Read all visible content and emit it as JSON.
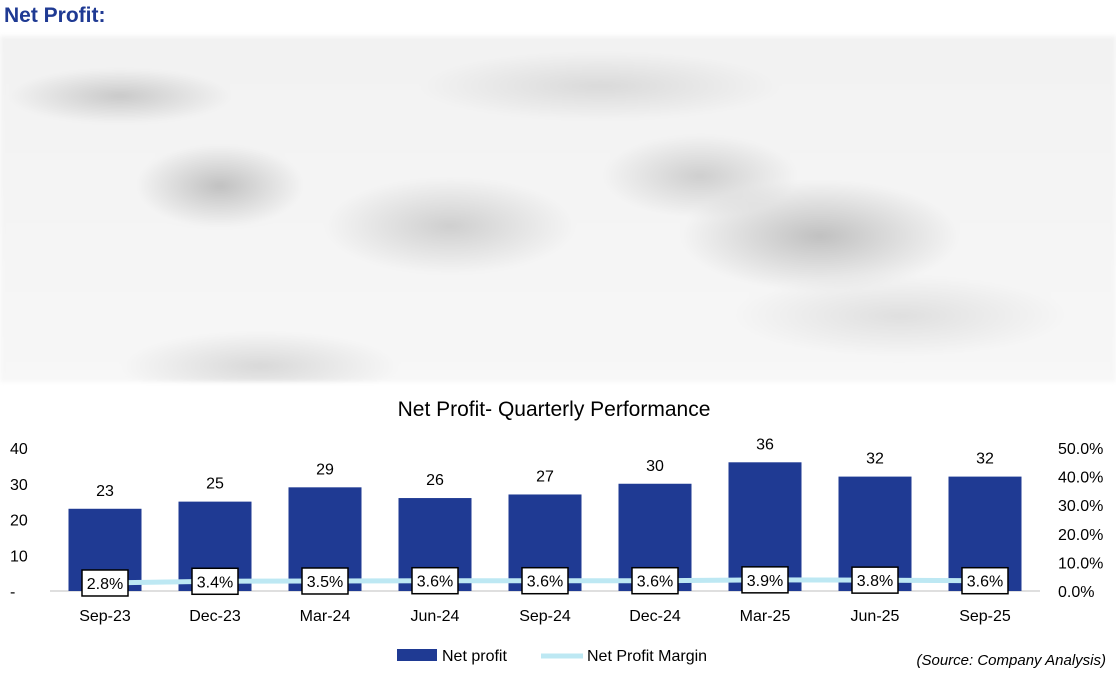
{
  "heading": "Net Profit:",
  "source": "(Source: Company Analysis)",
  "colors": {
    "bar": "#1f3a93",
    "line": "#bde8f3",
    "heading": "#1f3a93"
  },
  "chart_data": {
    "type": "bar",
    "title": "Net Profit- Quarterly Performance",
    "categories": [
      "Sep-23",
      "Dec-23",
      "Mar-24",
      "Jun-24",
      "Sep-24",
      "Dec-24",
      "Mar-25",
      "Jun-25",
      "Sep-25"
    ],
    "series": [
      {
        "name": "Net profit",
        "type": "bar",
        "axis": "left",
        "values": [
          23,
          25,
          29,
          26,
          27,
          30,
          36,
          32,
          32
        ],
        "labels": [
          "23",
          "25",
          "29",
          "26",
          "27",
          "30",
          "36",
          "32",
          "32"
        ]
      },
      {
        "name": "Net Profit Margin",
        "type": "line",
        "axis": "right",
        "values": [
          2.8,
          3.4,
          3.5,
          3.6,
          3.6,
          3.6,
          3.9,
          3.8,
          3.6
        ],
        "labels": [
          "2.8%",
          "3.4%",
          "3.5%",
          "3.6%",
          "3.6%",
          "3.6%",
          "3.9%",
          "3.8%",
          "3.6%"
        ]
      }
    ],
    "left_axis": {
      "ylim": [
        0,
        40
      ],
      "ticks": [
        "-",
        "10",
        "20",
        "30",
        "40"
      ],
      "tick_values": [
        0,
        10,
        20,
        30,
        40
      ]
    },
    "right_axis": {
      "ylim": [
        0,
        50
      ],
      "ticks": [
        "0.0%",
        "10.0%",
        "20.0%",
        "30.0%",
        "40.0%",
        "50.0%"
      ],
      "tick_values": [
        0,
        10,
        20,
        30,
        40,
        50
      ]
    },
    "grid": false,
    "legend": "bottom"
  }
}
